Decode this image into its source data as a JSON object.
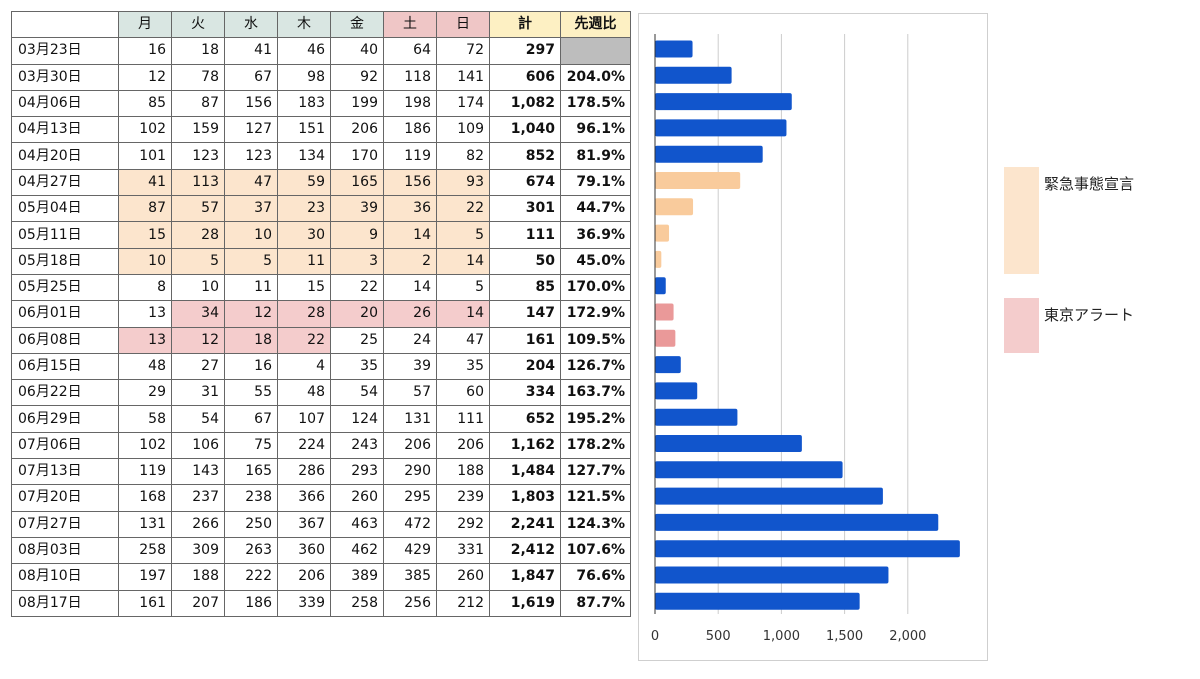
{
  "table": {
    "headers": {
      "days": [
        "月",
        "火",
        "水",
        "木",
        "金",
        "土",
        "日"
      ],
      "total": "計",
      "ratio": "先週比"
    },
    "rows": [
      {
        "week": "03月23日",
        "days": [
          "16",
          "18",
          "41",
          "46",
          "40",
          "64",
          "72"
        ],
        "total": "297",
        "ratio": "",
        "period": "none"
      },
      {
        "week": "03月30日",
        "days": [
          "12",
          "78",
          "67",
          "98",
          "92",
          "118",
          "141"
        ],
        "total": "606",
        "ratio": "204.0%",
        "period": "none"
      },
      {
        "week": "04月06日",
        "days": [
          "85",
          "87",
          "156",
          "183",
          "199",
          "198",
          "174"
        ],
        "total": "1,082",
        "ratio": "178.5%",
        "period": "none"
      },
      {
        "week": "04月13日",
        "days": [
          "102",
          "159",
          "127",
          "151",
          "206",
          "186",
          "109"
        ],
        "total": "1,040",
        "ratio": "96.1%",
        "period": "none"
      },
      {
        "week": "04月20日",
        "days": [
          "101",
          "123",
          "123",
          "134",
          "170",
          "119",
          "82"
        ],
        "total": "852",
        "ratio": "81.9%",
        "period": "none"
      },
      {
        "week": "04月27日",
        "days": [
          "41",
          "113",
          "47",
          "59",
          "165",
          "156",
          "93"
        ],
        "total": "674",
        "ratio": "79.1%",
        "period": "emergency"
      },
      {
        "week": "05月04日",
        "days": [
          "87",
          "57",
          "37",
          "23",
          "39",
          "36",
          "22"
        ],
        "total": "301",
        "ratio": "44.7%",
        "period": "emergency"
      },
      {
        "week": "05月11日",
        "days": [
          "15",
          "28",
          "10",
          "30",
          "9",
          "14",
          "5"
        ],
        "total": "111",
        "ratio": "36.9%",
        "period": "emergency"
      },
      {
        "week": "05月18日",
        "days": [
          "10",
          "5",
          "5",
          "11",
          "3",
          "2",
          "14"
        ],
        "total": "50",
        "ratio": "45.0%",
        "period": "emergency"
      },
      {
        "week": "05月25日",
        "days": [
          "8",
          "10",
          "11",
          "15",
          "22",
          "14",
          "5"
        ],
        "total": "85",
        "ratio": "170.0%",
        "period": "none"
      },
      {
        "week": "06月01日",
        "days": [
          "13",
          "34",
          "12",
          "28",
          "20",
          "26",
          "14"
        ],
        "total": "147",
        "ratio": "172.9%",
        "period": "alert"
      },
      {
        "week": "06月08日",
        "days": [
          "13",
          "12",
          "18",
          "22",
          "25",
          "24",
          "47"
        ],
        "total": "161",
        "ratio": "109.5%",
        "period": "alert"
      },
      {
        "week": "06月15日",
        "days": [
          "48",
          "27",
          "16",
          "4",
          "35",
          "39",
          "35"
        ],
        "total": "204",
        "ratio": "126.7%",
        "period": "none"
      },
      {
        "week": "06月22日",
        "days": [
          "29",
          "31",
          "55",
          "48",
          "54",
          "57",
          "60"
        ],
        "total": "334",
        "ratio": "163.7%",
        "period": "none"
      },
      {
        "week": "06月29日",
        "days": [
          "58",
          "54",
          "67",
          "107",
          "124",
          "131",
          "111"
        ],
        "total": "652",
        "ratio": "195.2%",
        "period": "none"
      },
      {
        "week": "07月06日",
        "days": [
          "102",
          "106",
          "75",
          "224",
          "243",
          "206",
          "206"
        ],
        "total": "1,162",
        "ratio": "178.2%",
        "period": "none"
      },
      {
        "week": "07月13日",
        "days": [
          "119",
          "143",
          "165",
          "286",
          "293",
          "290",
          "188"
        ],
        "total": "1,484",
        "ratio": "127.7%",
        "period": "none"
      },
      {
        "week": "07月20日",
        "days": [
          "168",
          "237",
          "238",
          "366",
          "260",
          "295",
          "239"
        ],
        "total": "1,803",
        "ratio": "121.5%",
        "period": "none"
      },
      {
        "week": "07月27日",
        "days": [
          "131",
          "266",
          "250",
          "367",
          "463",
          "472",
          "292"
        ],
        "total": "2,241",
        "ratio": "124.3%",
        "period": "none"
      },
      {
        "week": "08月03日",
        "days": [
          "258",
          "309",
          "263",
          "360",
          "462",
          "429",
          "331"
        ],
        "total": "2,412",
        "ratio": "107.6%",
        "period": "none"
      },
      {
        "week": "08月10日",
        "days": [
          "197",
          "188",
          "222",
          "206",
          "389",
          "385",
          "260"
        ],
        "total": "1,847",
        "ratio": "76.6%",
        "period": "none"
      },
      {
        "week": "08月17日",
        "days": [
          "161",
          "207",
          "186",
          "339",
          "258",
          "256",
          "212"
        ],
        "total": "1,619",
        "ratio": "87.7%",
        "period": "none"
      }
    ],
    "highlighted_cells": {
      "emergency": [
        [
          5,
          0
        ],
        [
          5,
          1
        ],
        [
          5,
          2
        ],
        [
          5,
          3
        ],
        [
          5,
          4
        ],
        [
          5,
          5
        ],
        [
          5,
          6
        ],
        [
          6,
          0
        ],
        [
          6,
          1
        ],
        [
          6,
          2
        ],
        [
          6,
          3
        ],
        [
          6,
          4
        ],
        [
          6,
          5
        ],
        [
          6,
          6
        ],
        [
          7,
          0
        ],
        [
          7,
          1
        ],
        [
          7,
          2
        ],
        [
          7,
          3
        ],
        [
          7,
          4
        ],
        [
          7,
          5
        ],
        [
          7,
          6
        ],
        [
          8,
          0
        ],
        [
          8,
          1
        ],
        [
          8,
          2
        ],
        [
          8,
          3
        ],
        [
          8,
          4
        ],
        [
          8,
          5
        ],
        [
          8,
          6
        ]
      ],
      "alert": [
        [
          10,
          1
        ],
        [
          10,
          2
        ],
        [
          10,
          3
        ],
        [
          10,
          4
        ],
        [
          10,
          5
        ],
        [
          10,
          6
        ],
        [
          11,
          0
        ],
        [
          11,
          1
        ],
        [
          11,
          2
        ],
        [
          11,
          3
        ]
      ]
    }
  },
  "legend": {
    "emergency_label": "緊急事態宣言",
    "alert_label": "東京アラート"
  },
  "colors": {
    "bar_default": "#1155cc",
    "bar_emergency": "#f9cb9c",
    "bar_alert": "#ea9999",
    "emergency_fill": "#fce5cd",
    "alert_fill": "#f4cccc",
    "day_header": "#d9e6e2",
    "weekend_header": "#efc6c6",
    "total_header": "#fdf0c3",
    "blank_cell": "#bdbdbd",
    "gridline": "#cccccc"
  },
  "chart_data": {
    "type": "bar",
    "orientation": "horizontal",
    "categories": [
      "03月23日",
      "03月30日",
      "04月06日",
      "04月13日",
      "04月20日",
      "04月27日",
      "05月04日",
      "05月11日",
      "05月18日",
      "05月25日",
      "06月01日",
      "06月08日",
      "06月15日",
      "06月22日",
      "06月29日",
      "07月06日",
      "07月13日",
      "07月20日",
      "07月27日",
      "08月03日",
      "08月10日",
      "08月17日"
    ],
    "values": [
      297,
      606,
      1082,
      1040,
      852,
      674,
      301,
      111,
      50,
      85,
      147,
      161,
      204,
      334,
      652,
      1162,
      1484,
      1803,
      2241,
      2412,
      1847,
      1619
    ],
    "bar_groups": [
      "none",
      "none",
      "none",
      "none",
      "none",
      "emergency",
      "emergency",
      "emergency",
      "emergency",
      "none",
      "alert",
      "alert",
      "none",
      "none",
      "none",
      "none",
      "none",
      "none",
      "none",
      "none",
      "none",
      "none"
    ],
    "xlim": [
      0,
      2500
    ],
    "xticks": [
      0,
      500,
      1000,
      1500,
      2000
    ],
    "xtick_labels": [
      "0",
      "500",
      "1,000",
      "1,500",
      "2,000"
    ],
    "grid": true,
    "title": "",
    "xlabel": "",
    "ylabel": ""
  }
}
